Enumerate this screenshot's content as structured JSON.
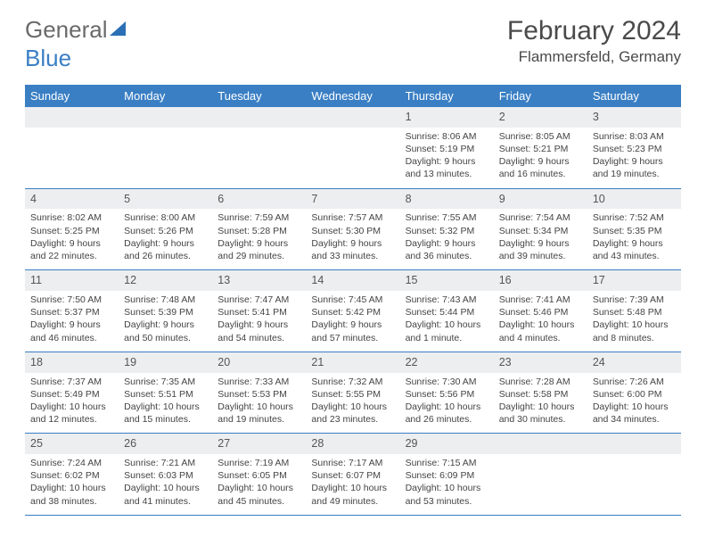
{
  "logo": {
    "part1": "General",
    "part2": "Blue"
  },
  "title": "February 2024",
  "location": "Flammersfeld, Germany",
  "colors": {
    "header_bg": "#3a7fc4",
    "header_text": "#ffffff",
    "daynum_bg": "#eceef0",
    "cell_border": "#3a7fc4",
    "body_text": "#444444",
    "logo_gray": "#6a6a6a",
    "logo_blue": "#3a7fc4"
  },
  "weekdays": [
    "Sunday",
    "Monday",
    "Tuesday",
    "Wednesday",
    "Thursday",
    "Friday",
    "Saturday"
  ],
  "weeks": [
    [
      null,
      null,
      null,
      null,
      {
        "day": "1",
        "sunrise": "Sunrise: 8:06 AM",
        "sunset": "Sunset: 5:19 PM",
        "daylight": "Daylight: 9 hours and 13 minutes."
      },
      {
        "day": "2",
        "sunrise": "Sunrise: 8:05 AM",
        "sunset": "Sunset: 5:21 PM",
        "daylight": "Daylight: 9 hours and 16 minutes."
      },
      {
        "day": "3",
        "sunrise": "Sunrise: 8:03 AM",
        "sunset": "Sunset: 5:23 PM",
        "daylight": "Daylight: 9 hours and 19 minutes."
      }
    ],
    [
      {
        "day": "4",
        "sunrise": "Sunrise: 8:02 AM",
        "sunset": "Sunset: 5:25 PM",
        "daylight": "Daylight: 9 hours and 22 minutes."
      },
      {
        "day": "5",
        "sunrise": "Sunrise: 8:00 AM",
        "sunset": "Sunset: 5:26 PM",
        "daylight": "Daylight: 9 hours and 26 minutes."
      },
      {
        "day": "6",
        "sunrise": "Sunrise: 7:59 AM",
        "sunset": "Sunset: 5:28 PM",
        "daylight": "Daylight: 9 hours and 29 minutes."
      },
      {
        "day": "7",
        "sunrise": "Sunrise: 7:57 AM",
        "sunset": "Sunset: 5:30 PM",
        "daylight": "Daylight: 9 hours and 33 minutes."
      },
      {
        "day": "8",
        "sunrise": "Sunrise: 7:55 AM",
        "sunset": "Sunset: 5:32 PM",
        "daylight": "Daylight: 9 hours and 36 minutes."
      },
      {
        "day": "9",
        "sunrise": "Sunrise: 7:54 AM",
        "sunset": "Sunset: 5:34 PM",
        "daylight": "Daylight: 9 hours and 39 minutes."
      },
      {
        "day": "10",
        "sunrise": "Sunrise: 7:52 AM",
        "sunset": "Sunset: 5:35 PM",
        "daylight": "Daylight: 9 hours and 43 minutes."
      }
    ],
    [
      {
        "day": "11",
        "sunrise": "Sunrise: 7:50 AM",
        "sunset": "Sunset: 5:37 PM",
        "daylight": "Daylight: 9 hours and 46 minutes."
      },
      {
        "day": "12",
        "sunrise": "Sunrise: 7:48 AM",
        "sunset": "Sunset: 5:39 PM",
        "daylight": "Daylight: 9 hours and 50 minutes."
      },
      {
        "day": "13",
        "sunrise": "Sunrise: 7:47 AM",
        "sunset": "Sunset: 5:41 PM",
        "daylight": "Daylight: 9 hours and 54 minutes."
      },
      {
        "day": "14",
        "sunrise": "Sunrise: 7:45 AM",
        "sunset": "Sunset: 5:42 PM",
        "daylight": "Daylight: 9 hours and 57 minutes."
      },
      {
        "day": "15",
        "sunrise": "Sunrise: 7:43 AM",
        "sunset": "Sunset: 5:44 PM",
        "daylight": "Daylight: 10 hours and 1 minute."
      },
      {
        "day": "16",
        "sunrise": "Sunrise: 7:41 AM",
        "sunset": "Sunset: 5:46 PM",
        "daylight": "Daylight: 10 hours and 4 minutes."
      },
      {
        "day": "17",
        "sunrise": "Sunrise: 7:39 AM",
        "sunset": "Sunset: 5:48 PM",
        "daylight": "Daylight: 10 hours and 8 minutes."
      }
    ],
    [
      {
        "day": "18",
        "sunrise": "Sunrise: 7:37 AM",
        "sunset": "Sunset: 5:49 PM",
        "daylight": "Daylight: 10 hours and 12 minutes."
      },
      {
        "day": "19",
        "sunrise": "Sunrise: 7:35 AM",
        "sunset": "Sunset: 5:51 PM",
        "daylight": "Daylight: 10 hours and 15 minutes."
      },
      {
        "day": "20",
        "sunrise": "Sunrise: 7:33 AM",
        "sunset": "Sunset: 5:53 PM",
        "daylight": "Daylight: 10 hours and 19 minutes."
      },
      {
        "day": "21",
        "sunrise": "Sunrise: 7:32 AM",
        "sunset": "Sunset: 5:55 PM",
        "daylight": "Daylight: 10 hours and 23 minutes."
      },
      {
        "day": "22",
        "sunrise": "Sunrise: 7:30 AM",
        "sunset": "Sunset: 5:56 PM",
        "daylight": "Daylight: 10 hours and 26 minutes."
      },
      {
        "day": "23",
        "sunrise": "Sunrise: 7:28 AM",
        "sunset": "Sunset: 5:58 PM",
        "daylight": "Daylight: 10 hours and 30 minutes."
      },
      {
        "day": "24",
        "sunrise": "Sunrise: 7:26 AM",
        "sunset": "Sunset: 6:00 PM",
        "daylight": "Daylight: 10 hours and 34 minutes."
      }
    ],
    [
      {
        "day": "25",
        "sunrise": "Sunrise: 7:24 AM",
        "sunset": "Sunset: 6:02 PM",
        "daylight": "Daylight: 10 hours and 38 minutes."
      },
      {
        "day": "26",
        "sunrise": "Sunrise: 7:21 AM",
        "sunset": "Sunset: 6:03 PM",
        "daylight": "Daylight: 10 hours and 41 minutes."
      },
      {
        "day": "27",
        "sunrise": "Sunrise: 7:19 AM",
        "sunset": "Sunset: 6:05 PM",
        "daylight": "Daylight: 10 hours and 45 minutes."
      },
      {
        "day": "28",
        "sunrise": "Sunrise: 7:17 AM",
        "sunset": "Sunset: 6:07 PM",
        "daylight": "Daylight: 10 hours and 49 minutes."
      },
      {
        "day": "29",
        "sunrise": "Sunrise: 7:15 AM",
        "sunset": "Sunset: 6:09 PM",
        "daylight": "Daylight: 10 hours and 53 minutes."
      },
      null,
      null
    ]
  ]
}
